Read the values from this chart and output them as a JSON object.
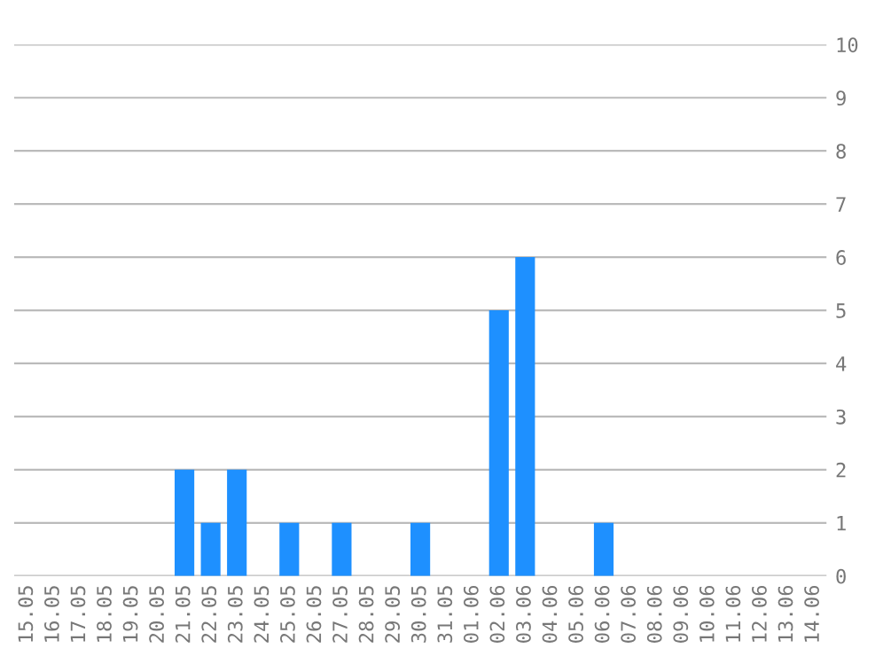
{
  "chart_data": {
    "type": "bar",
    "categories": [
      "15.05",
      "16.05",
      "17.05",
      "18.05",
      "19.05",
      "20.05",
      "21.05",
      "22.05",
      "23.05",
      "24.05",
      "25.05",
      "26.05",
      "27.05",
      "28.05",
      "29.05",
      "30.05",
      "31.05",
      "01.06",
      "02.06",
      "03.06",
      "04.06",
      "05.06",
      "06.06",
      "07.06",
      "08.06",
      "09.06",
      "10.06",
      "11.06",
      "12.06",
      "13.06",
      "14.06"
    ],
    "values": [
      0,
      0,
      0,
      0,
      0,
      0,
      2,
      1,
      2,
      0,
      1,
      0,
      1,
      0,
      0,
      1,
      0,
      0,
      5,
      6,
      0,
      0,
      1,
      0,
      0,
      0,
      0,
      0,
      0,
      0,
      0
    ],
    "color": "#1e90ff",
    "ylim": [
      0,
      10
    ],
    "yticks": [
      0,
      1,
      2,
      3,
      4,
      5,
      6,
      7,
      8,
      9,
      10
    ],
    "grid": "y"
  }
}
